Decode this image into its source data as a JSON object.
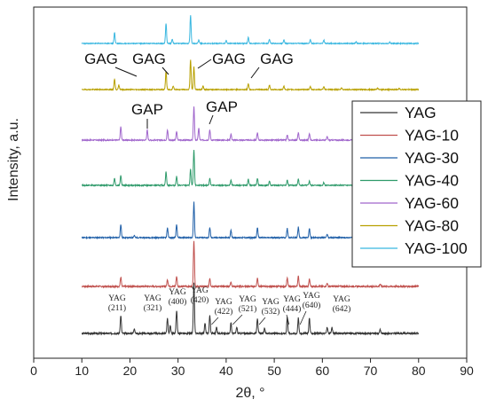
{
  "chart_data": {
    "type": "line",
    "xlabel": "2θ, °",
    "ylabel": "Intensity, a.u.",
    "xlim": [
      0,
      90
    ],
    "x_ticks": [
      "0",
      "10",
      "20",
      "30",
      "40",
      "50",
      "60",
      "70",
      "80",
      "90"
    ],
    "x_range_data": [
      10,
      80
    ],
    "legend_position": "right",
    "grid": false,
    "series": [
      {
        "name": "YAG",
        "color": "#333333",
        "peaks": [
          [
            18.1,
            0.35
          ],
          [
            20.9,
            0.1
          ],
          [
            27.8,
            0.3
          ],
          [
            28.4,
            0.15
          ],
          [
            29.7,
            0.45
          ],
          [
            33.3,
            1.0
          ],
          [
            35.6,
            0.2
          ],
          [
            36.6,
            0.35
          ],
          [
            38.0,
            0.12
          ],
          [
            41.0,
            0.2
          ],
          [
            42.2,
            0.12
          ],
          [
            46.5,
            0.3
          ],
          [
            48.0,
            0.1
          ],
          [
            52.7,
            0.32
          ],
          [
            55.0,
            0.3
          ],
          [
            57.3,
            0.3
          ],
          [
            61.0,
            0.12
          ],
          [
            62.0,
            0.12
          ],
          [
            72.0,
            0.08
          ]
        ]
      },
      {
        "name": "YAG-10",
        "color": "#c0504d",
        "peaks": [
          [
            18.1,
            0.2
          ],
          [
            27.8,
            0.15
          ],
          [
            29.7,
            0.22
          ],
          [
            33.3,
            1.0
          ],
          [
            36.6,
            0.18
          ],
          [
            41.0,
            0.1
          ],
          [
            46.5,
            0.18
          ],
          [
            52.7,
            0.18
          ],
          [
            55.0,
            0.22
          ],
          [
            57.3,
            0.16
          ],
          [
            61.0,
            0.07
          ],
          [
            72.0,
            0.05
          ]
        ]
      },
      {
        "name": "YAG-30",
        "color": "#1f5fa8",
        "peaks": [
          [
            18.1,
            0.38
          ],
          [
            20.9,
            0.06
          ],
          [
            27.8,
            0.28
          ],
          [
            29.7,
            0.36
          ],
          [
            33.3,
            1.0
          ],
          [
            36.6,
            0.28
          ],
          [
            41.0,
            0.2
          ],
          [
            46.5,
            0.28
          ],
          [
            52.7,
            0.26
          ],
          [
            55.0,
            0.3
          ],
          [
            57.3,
            0.26
          ],
          [
            61.0,
            0.1
          ]
        ]
      },
      {
        "name": "YAG-40",
        "color": "#2e9a6a",
        "peaks": [
          [
            16.8,
            0.2
          ],
          [
            18.1,
            0.28
          ],
          [
            27.5,
            0.38
          ],
          [
            29.7,
            0.25
          ],
          [
            32.6,
            0.45
          ],
          [
            33.3,
            1.0
          ],
          [
            36.6,
            0.2
          ],
          [
            41.0,
            0.14
          ],
          [
            44.6,
            0.16
          ],
          [
            46.5,
            0.2
          ],
          [
            49.0,
            0.12
          ],
          [
            52.7,
            0.15
          ],
          [
            55.0,
            0.18
          ],
          [
            57.3,
            0.12
          ],
          [
            60.3,
            0.08
          ]
        ]
      },
      {
        "name": "YAG-60",
        "color": "#a066cc",
        "peaks": [
          [
            18.1,
            0.4
          ],
          [
            23.6,
            0.3
          ],
          [
            27.8,
            0.3
          ],
          [
            29.7,
            0.25
          ],
          [
            33.3,
            1.0
          ],
          [
            34.3,
            0.35
          ],
          [
            36.6,
            0.3
          ],
          [
            41.0,
            0.18
          ],
          [
            46.5,
            0.22
          ],
          [
            52.7,
            0.15
          ],
          [
            55.0,
            0.22
          ],
          [
            57.3,
            0.2
          ],
          [
            61.0,
            0.1
          ]
        ]
      },
      {
        "name": "YAG-80",
        "color": "#b8a000",
        "peaks": [
          [
            16.8,
            0.35
          ],
          [
            17.7,
            0.15
          ],
          [
            27.5,
            0.6
          ],
          [
            29.0,
            0.12
          ],
          [
            32.6,
            1.0
          ],
          [
            33.3,
            0.75
          ],
          [
            35.2,
            0.12
          ],
          [
            44.6,
            0.2
          ],
          [
            49.0,
            0.14
          ],
          [
            52.0,
            0.1
          ],
          [
            57.5,
            0.1
          ],
          [
            60.3,
            0.1
          ],
          [
            64.0,
            0.06
          ],
          [
            71.5,
            0.05
          ],
          [
            76.0,
            0.04
          ]
        ]
      },
      {
        "name": "YAG-100",
        "color": "#39b7e0",
        "peaks": [
          [
            16.8,
            0.38
          ],
          [
            27.5,
            0.7
          ],
          [
            28.8,
            0.15
          ],
          [
            32.6,
            1.0
          ],
          [
            34.3,
            0.12
          ],
          [
            40.0,
            0.1
          ],
          [
            44.6,
            0.22
          ],
          [
            49.0,
            0.15
          ],
          [
            52.0,
            0.12
          ],
          [
            57.5,
            0.14
          ],
          [
            60.3,
            0.12
          ],
          [
            67.0,
            0.06
          ],
          [
            74.0,
            0.05
          ]
        ]
      }
    ],
    "annotations_gag": [
      {
        "label": "GAG",
        "x": 16.8
      },
      {
        "label": "GAG",
        "x": 27.5
      },
      {
        "label": "GAG",
        "x": 32.6
      },
      {
        "label": "GAG",
        "x": 44.6
      }
    ],
    "annotations_gap": [
      {
        "label": "GAP",
        "x": 23.6
      },
      {
        "label": "GAP",
        "x": 34.3
      }
    ],
    "hkl_labels": [
      {
        "name": "YAG",
        "hkl": "(211)",
        "x": 18.1
      },
      {
        "name": "YAG",
        "hkl": "(321)",
        "x": 27.8
      },
      {
        "name": "YAG",
        "hkl": "(400)",
        "x": 29.7
      },
      {
        "name": "YAG",
        "hkl": "(420)",
        "x": 33.3
      },
      {
        "name": "YAG",
        "hkl": "(422)",
        "x": 36.6
      },
      {
        "name": "YAG",
        "hkl": "(521)",
        "x": 41.0
      },
      {
        "name": "YAG",
        "hkl": "(532)",
        "x": 46.5
      },
      {
        "name": "YAG",
        "hkl": "(444)",
        "x": 52.7
      },
      {
        "name": "YAG",
        "hkl": "(640)",
        "x": 55.0
      },
      {
        "name": "YAG",
        "hkl": "(642)",
        "x": 57.3
      }
    ]
  }
}
